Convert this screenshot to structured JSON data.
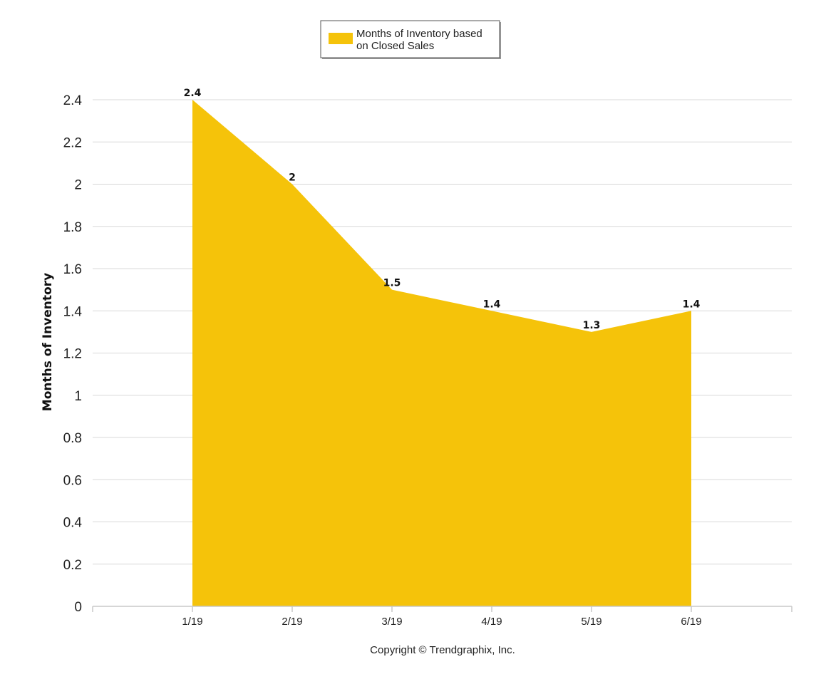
{
  "chart_data": {
    "type": "area",
    "categories": [
      "1/19",
      "2/19",
      "3/19",
      "4/19",
      "5/19",
      "6/19"
    ],
    "series": [
      {
        "name": "Months of Inventory based on Closed Sales",
        "values": [
          2.4,
          2,
          1.5,
          1.4,
          1.3,
          1.4
        ],
        "data_labels": [
          "2.4",
          "2",
          "1.5",
          "1.4",
          "1.3",
          "1.4"
        ],
        "color": "#F5C30A"
      }
    ],
    "ylabel": "Months of Inventory",
    "xlabel": "",
    "ylim": [
      0,
      2.4
    ],
    "yticks": [
      0,
      0.2,
      0.4,
      0.6,
      0.8,
      1,
      1.2,
      1.4,
      1.6,
      1.8,
      2,
      2.2,
      2.4
    ],
    "ytick_labels": [
      "0",
      "0.2",
      "0.4",
      "0.6",
      "0.8",
      "1",
      "1.2",
      "1.4",
      "1.6",
      "1.8",
      "2",
      "2.2",
      "2.4"
    ],
    "grid": true,
    "legend": {
      "position": "top-center",
      "lines": [
        "Months of Inventory based",
        "on Closed Sales"
      ]
    }
  },
  "footer": {
    "copyright": "Copyright © Trendgraphix, Inc."
  },
  "colors": {
    "area": "#F5C30A",
    "grid": "#d8d8d8",
    "axis": "#c8c8c8"
  }
}
